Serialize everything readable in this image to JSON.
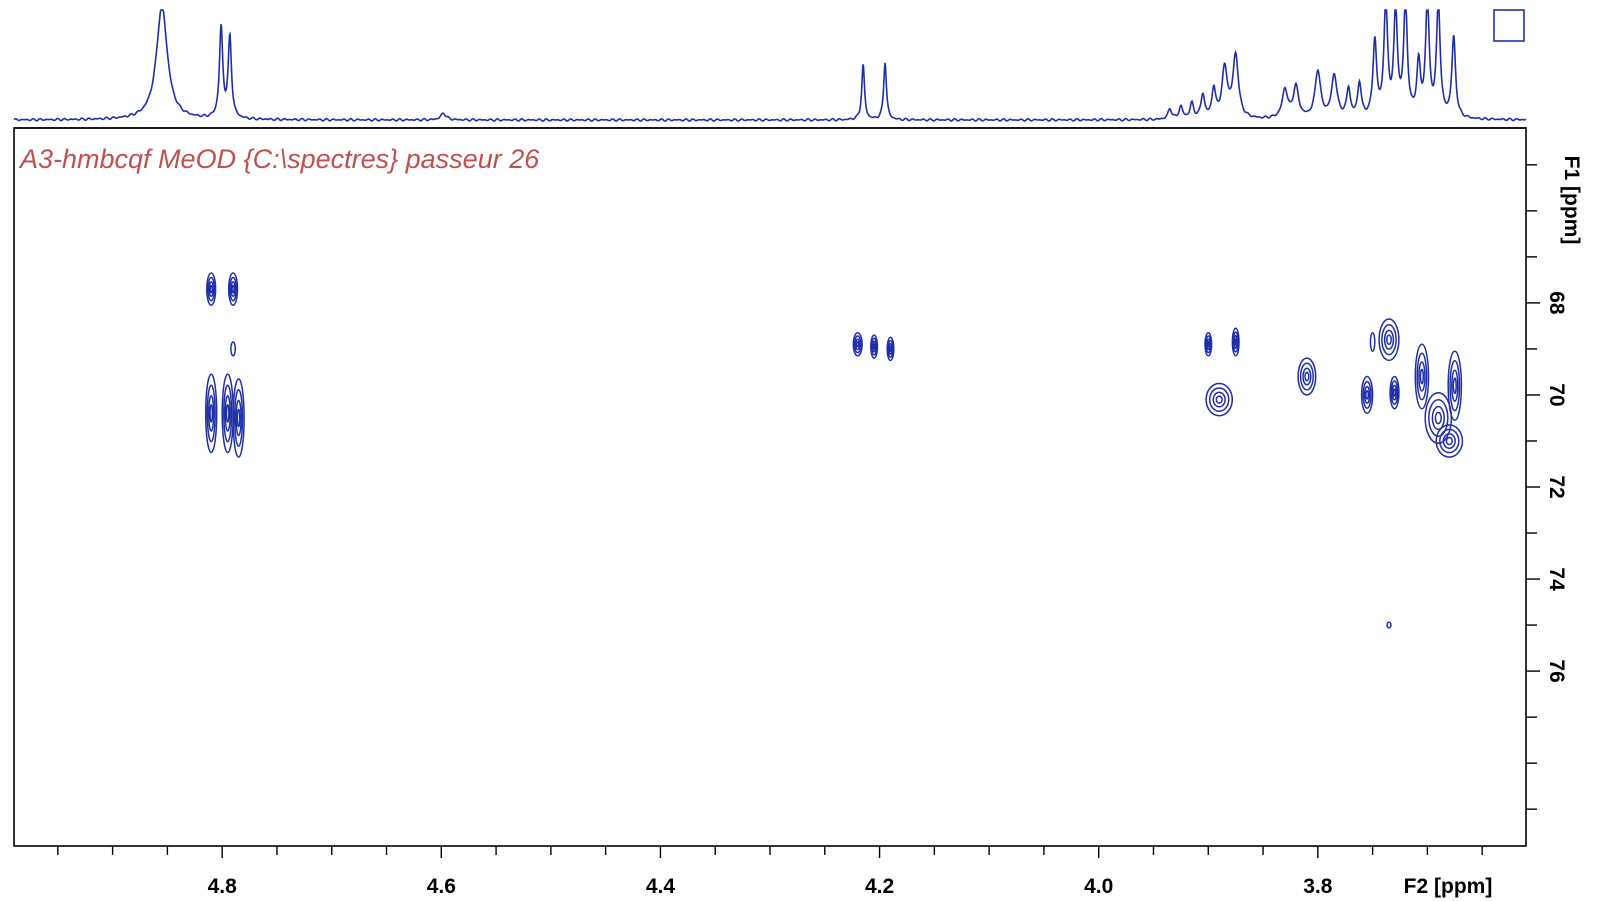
{
  "colors": {
    "title": "#c0504d",
    "data": "#1f2fa8",
    "axis": "#000000"
  },
  "chart_data": {
    "type": "heatmap",
    "plot_kind": "2D NMR HMBC contour plot with 1H projection",
    "title": "A3-hmbcqf MeOD {C:\\spectres} passeur 26",
    "xlabel": "F2 [ppm]",
    "ylabel": "F1 [ppm]",
    "x_axis": {
      "reversed": true,
      "range": [
        4.99,
        3.61
      ],
      "tick_labels": [
        "4.8",
        "4.6",
        "4.4",
        "4.2",
        "4.0",
        "3.8"
      ],
      "major_ticks": [
        4.8,
        4.6,
        4.4,
        4.2,
        4.0,
        3.8
      ],
      "minor_step": 0.05
    },
    "y_axis": {
      "reversed": true,
      "range": [
        64.2,
        79.8
      ],
      "tick_labels": [
        "68",
        "70",
        "72",
        "74",
        "76"
      ],
      "major_ticks": [
        68,
        70,
        72,
        74,
        76
      ],
      "minor_step": 1
    },
    "projection_1h": {
      "peaks": [
        {
          "x": 4.855,
          "height": 1.2,
          "width": 0.006
        },
        {
          "x": 4.801,
          "height": 0.95,
          "width": 0.0018
        },
        {
          "x": 4.793,
          "height": 0.85,
          "width": 0.0018
        },
        {
          "x": 4.598,
          "height": 0.07,
          "width": 0.003
        },
        {
          "x": 4.215,
          "height": 0.58,
          "width": 0.0015
        },
        {
          "x": 4.195,
          "height": 0.61,
          "width": 0.0015
        },
        {
          "x": 3.935,
          "height": 0.11,
          "width": 0.002
        },
        {
          "x": 3.925,
          "height": 0.13,
          "width": 0.002
        },
        {
          "x": 3.915,
          "height": 0.16,
          "width": 0.002
        },
        {
          "x": 3.905,
          "height": 0.25,
          "width": 0.002
        },
        {
          "x": 3.895,
          "height": 0.3,
          "width": 0.002
        },
        {
          "x": 3.885,
          "height": 0.52,
          "width": 0.003
        },
        {
          "x": 3.875,
          "height": 0.66,
          "width": 0.003
        },
        {
          "x": 3.83,
          "height": 0.3,
          "width": 0.003
        },
        {
          "x": 3.82,
          "height": 0.33,
          "width": 0.003
        },
        {
          "x": 3.8,
          "height": 0.5,
          "width": 0.003
        },
        {
          "x": 3.785,
          "height": 0.45,
          "width": 0.003
        },
        {
          "x": 3.772,
          "height": 0.3,
          "width": 0.002
        },
        {
          "x": 3.762,
          "height": 0.36,
          "width": 0.002
        },
        {
          "x": 3.748,
          "height": 0.8,
          "width": 0.002
        },
        {
          "x": 3.738,
          "height": 1.2,
          "width": 0.002
        },
        {
          "x": 3.729,
          "height": 1.1,
          "width": 0.002
        },
        {
          "x": 3.72,
          "height": 1.2,
          "width": 0.002
        },
        {
          "x": 3.708,
          "height": 0.55,
          "width": 0.002
        },
        {
          "x": 3.7,
          "height": 1.2,
          "width": 0.002
        },
        {
          "x": 3.69,
          "height": 1.2,
          "width": 0.002
        },
        {
          "x": 3.676,
          "height": 0.85,
          "width": 0.002
        }
      ]
    },
    "cross_peaks": [
      {
        "x": 4.81,
        "y": 67.7,
        "sx": 0.004,
        "sy": 0.35
      },
      {
        "x": 4.79,
        "y": 67.7,
        "sx": 0.004,
        "sy": 0.35
      },
      {
        "x": 4.79,
        "y": 69.0,
        "sx": 0.002,
        "sy": 0.15
      },
      {
        "x": 4.81,
        "y": 70.4,
        "sx": 0.005,
        "sy": 0.85
      },
      {
        "x": 4.795,
        "y": 70.4,
        "sx": 0.005,
        "sy": 0.85
      },
      {
        "x": 4.785,
        "y": 70.5,
        "sx": 0.005,
        "sy": 0.85
      },
      {
        "x": 4.22,
        "y": 68.9,
        "sx": 0.004,
        "sy": 0.25
      },
      {
        "x": 4.205,
        "y": 68.95,
        "sx": 0.003,
        "sy": 0.25
      },
      {
        "x": 4.19,
        "y": 69.0,
        "sx": 0.003,
        "sy": 0.25
      },
      {
        "x": 3.9,
        "y": 68.9,
        "sx": 0.003,
        "sy": 0.25
      },
      {
        "x": 3.875,
        "y": 68.85,
        "sx": 0.003,
        "sy": 0.3
      },
      {
        "x": 3.89,
        "y": 70.1,
        "sx": 0.012,
        "sy": 0.35
      },
      {
        "x": 3.81,
        "y": 69.6,
        "sx": 0.008,
        "sy": 0.4
      },
      {
        "x": 3.75,
        "y": 68.85,
        "sx": 0.002,
        "sy": 0.2
      },
      {
        "x": 3.735,
        "y": 68.8,
        "sx": 0.009,
        "sy": 0.45
      },
      {
        "x": 3.755,
        "y": 70.0,
        "sx": 0.005,
        "sy": 0.4
      },
      {
        "x": 3.73,
        "y": 69.95,
        "sx": 0.004,
        "sy": 0.35
      },
      {
        "x": 3.705,
        "y": 69.6,
        "sx": 0.006,
        "sy": 0.7
      },
      {
        "x": 3.69,
        "y": 70.5,
        "sx": 0.012,
        "sy": 0.55
      },
      {
        "x": 3.675,
        "y": 69.8,
        "sx": 0.006,
        "sy": 0.75
      },
      {
        "x": 3.68,
        "y": 71.0,
        "sx": 0.012,
        "sy": 0.35
      },
      {
        "x": 3.735,
        "y": 75.0,
        "sx": 0.001,
        "sy": 0.06
      }
    ]
  }
}
